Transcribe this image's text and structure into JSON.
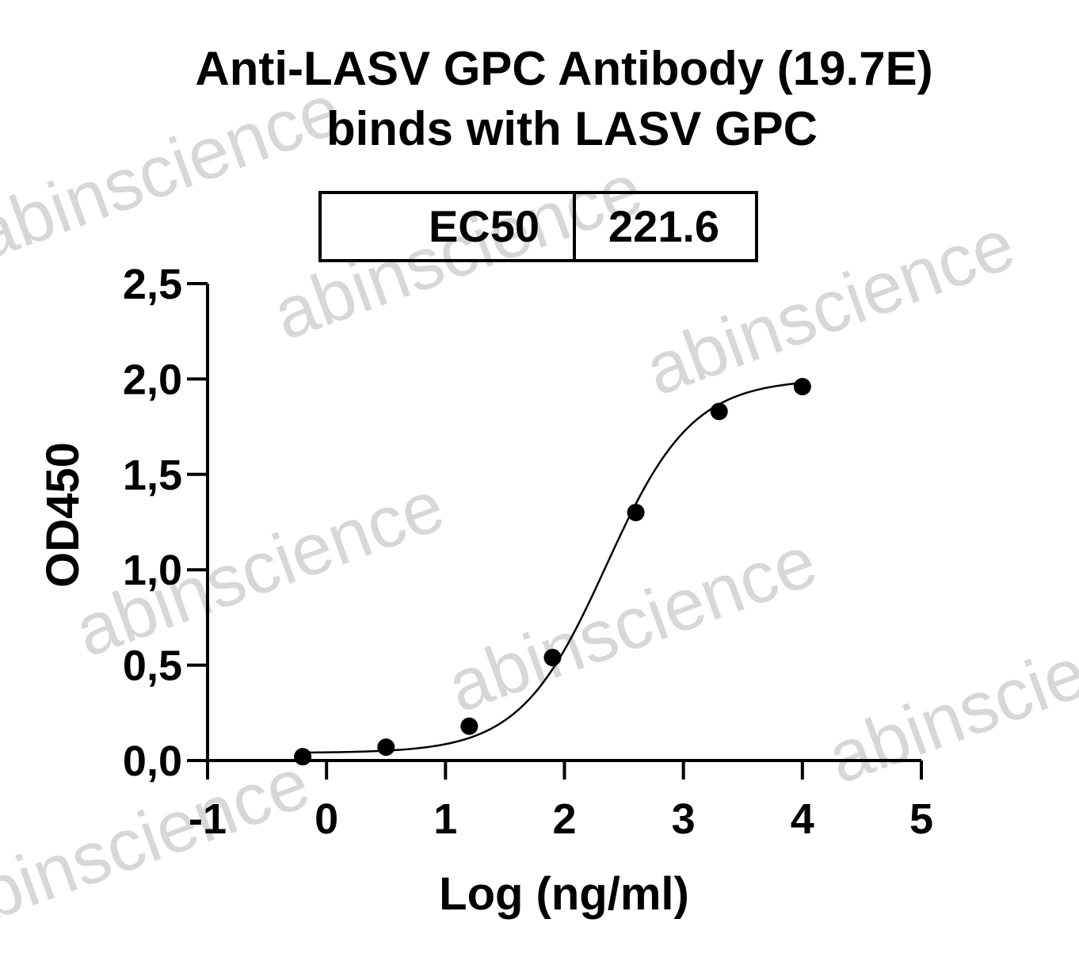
{
  "chart_data": {
    "type": "scatter",
    "title": [
      "Anti-LASV GPC Antibody (19.7E)",
      "binds with LASV GPC"
    ],
    "xlabel": "Log (ng/ml)",
    "ylabel": "OD450",
    "xlim": [
      -1,
      5
    ],
    "ylim": [
      0,
      2.5
    ],
    "xticks": [
      -1,
      0,
      1,
      2,
      3,
      4,
      5
    ],
    "xtick_labels": [
      "-1",
      "0",
      "1",
      "2",
      "3",
      "4",
      "5"
    ],
    "yticks": [
      0,
      0.5,
      1,
      1.5,
      2,
      2.5
    ],
    "ytick_labels": [
      "0,0",
      "0,5",
      "1,0",
      "1,5",
      "2,0",
      "2,5"
    ],
    "series": [
      {
        "x": [
          -0.2,
          0.5,
          1.2,
          1.9,
          2.6,
          3.3,
          4.0
        ],
        "y": [
          0.02,
          0.07,
          0.18,
          0.54,
          1.3,
          1.83,
          1.96
        ]
      }
    ],
    "fit_curve": {
      "type": "4PL",
      "bottom": 0.04,
      "top": 2.0,
      "logEC50": 2.35,
      "hill": 1.2
    },
    "ec50_table": {
      "label": "EC50",
      "value": "221.6"
    },
    "grid": false,
    "legend": "none",
    "colors": {
      "points": "#000000",
      "curve": "#000000",
      "axes": "#000000",
      "watermark": "#b8b8b8"
    }
  },
  "watermark": "abinscience"
}
